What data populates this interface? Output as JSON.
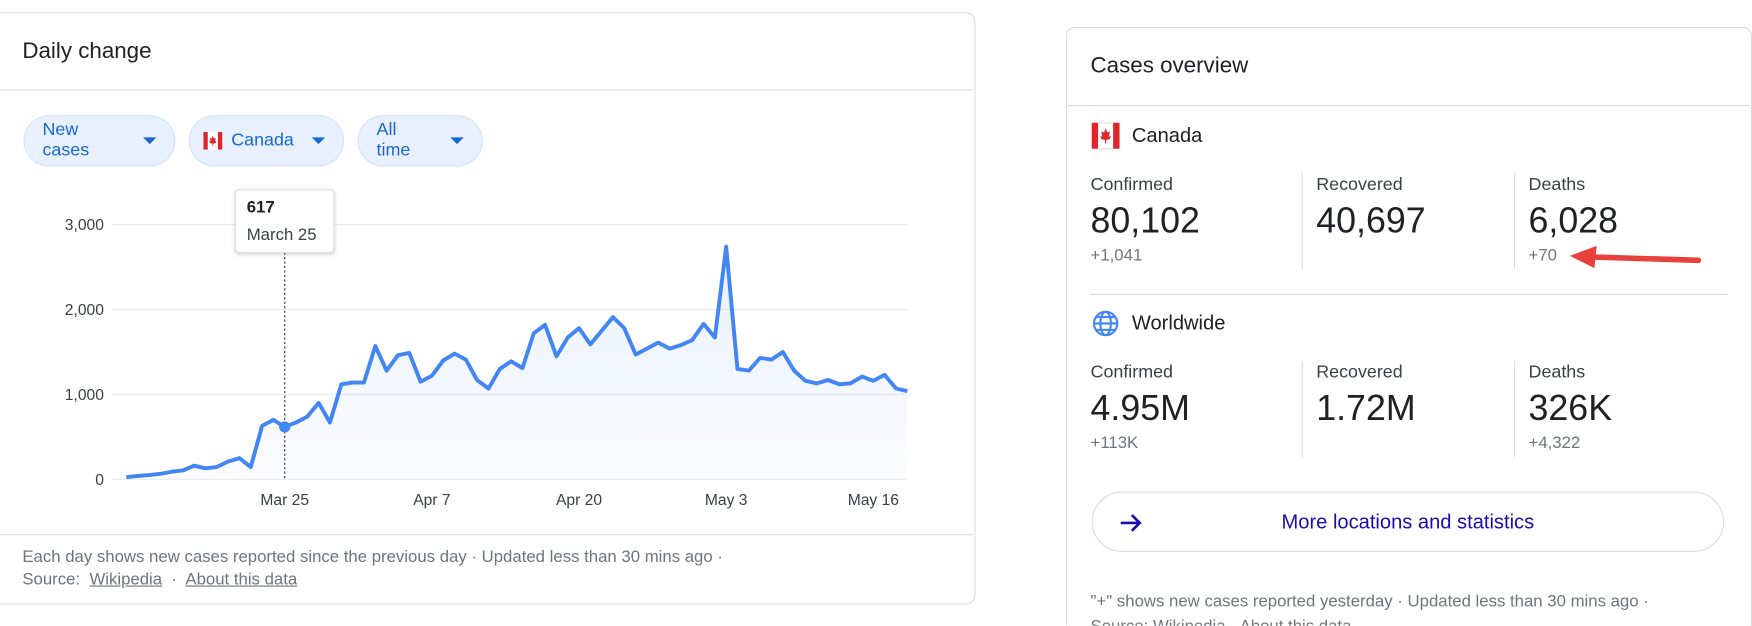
{
  "daily_change": {
    "title": "Daily change",
    "chips": [
      "New cases",
      "Canada",
      "All time"
    ],
    "footer": {
      "note": "Each day shows new cases reported since the previous day · Updated less than 30 mins ago ·",
      "source_label": "Source:",
      "source_link": "Wikipedia",
      "about_link": "About this data"
    }
  },
  "chart_data": {
    "type": "line",
    "color": "#4285f4",
    "grid": true,
    "area": true,
    "categories": [
      null,
      null,
      null,
      null,
      null,
      null,
      null,
      null,
      null,
      null,
      null,
      null,
      null,
      null,
      "Mar 25",
      null,
      null,
      null,
      null,
      null,
      null,
      null,
      null,
      null,
      null,
      null,
      null,
      "Apr 7",
      null,
      null,
      null,
      null,
      null,
      null,
      null,
      null,
      null,
      null,
      null,
      null,
      "Apr 20",
      null,
      null,
      null,
      null,
      null,
      null,
      null,
      null,
      null,
      null,
      null,
      null,
      "May 3",
      null,
      null,
      null,
      null,
      null,
      null,
      null,
      null,
      null,
      null,
      null,
      null,
      "May 16",
      null,
      null,
      null
    ],
    "values": [
      25,
      40,
      50,
      65,
      90,
      105,
      160,
      130,
      145,
      210,
      250,
      145,
      630,
      700,
      617,
      670,
      740,
      900,
      670,
      1120,
      1140,
      1140,
      1570,
      1280,
      1460,
      1490,
      1150,
      1220,
      1400,
      1480,
      1410,
      1170,
      1070,
      1300,
      1390,
      1310,
      1720,
      1820,
      1450,
      1670,
      1780,
      1590,
      1750,
      1910,
      1780,
      1470,
      1540,
      1610,
      1540,
      1580,
      1640,
      1830,
      1670,
      2740,
      1300,
      1280,
      1430,
      1410,
      1500,
      1280,
      1160,
      1130,
      1170,
      1120,
      1130,
      1210,
      1160,
      1230,
      1070,
      1040
    ],
    "highlight_index": 14,
    "tooltip_date": "March 25",
    "ylim": [
      0,
      3000
    ],
    "yticks": [
      0,
      {
        "value": 1000,
        "label": "1,000"
      },
      {
        "value": 2000,
        "label": "2,000"
      },
      {
        "value": 3000,
        "label": "3,000"
      }
    ]
  },
  "cases_overview": {
    "title": "Cases overview",
    "regions": [
      {
        "name": "Canada",
        "stats": [
          {
            "label": "Confirmed",
            "value": "80,102",
            "change": "+1,041"
          },
          {
            "label": "Recovered",
            "value": "40,697"
          },
          {
            "label": "Deaths",
            "value": "6,028",
            "change": "+70"
          }
        ]
      },
      {
        "name": "Worldwide",
        "stats": [
          {
            "label": "Confirmed",
            "value": "4.95M",
            "change": "+113K"
          },
          {
            "label": "Recovered",
            "value": "1.72M"
          },
          {
            "label": "Deaths",
            "value": "326K",
            "change": "+4,322"
          }
        ]
      }
    ],
    "button": "More locations and statistics",
    "footer": {
      "note": "\"+\" shows new cases reported yesterday · Updated less than 30 mins ago ·",
      "source": "Source: Wikipedia · About this data"
    }
  }
}
